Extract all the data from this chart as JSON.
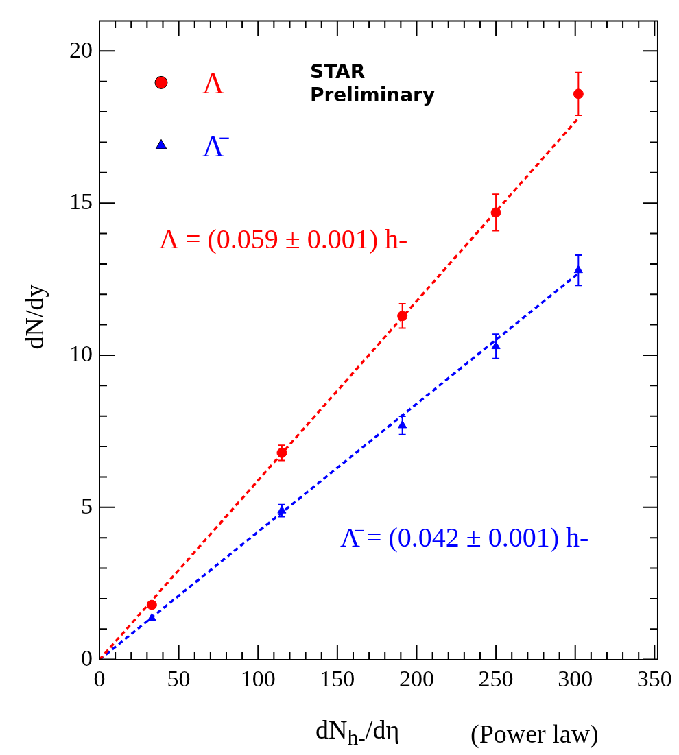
{
  "chart_data": {
    "type": "scatter",
    "xlabel": "dN$_{h-}$/dη",
    "ylabel": "dN/dy",
    "xlim": [
      0,
      352
    ],
    "ylim": [
      0,
      21
    ],
    "xticks": [
      0,
      {
        "value": 10,
        "label": null
      },
      {
        "value": 20,
        "label": null
      },
      {
        "value": 30,
        "label": null
      },
      {
        "value": 40,
        "label": null
      },
      50,
      {
        "value": 60,
        "label": null
      },
      {
        "value": 70,
        "label": null
      },
      {
        "value": 80,
        "label": null
      },
      {
        "value": 90,
        "label": null
      },
      100,
      {
        "value": 110,
        "label": null
      },
      {
        "value": 120,
        "label": null
      },
      {
        "value": 130,
        "label": null
      },
      {
        "value": 140,
        "label": null
      },
      150,
      {
        "value": 160,
        "label": null
      },
      {
        "value": 170,
        "label": null
      },
      {
        "value": 180,
        "label": null
      },
      {
        "value": 190,
        "label": null
      },
      200,
      {
        "value": 210,
        "label": null
      },
      {
        "value": 220,
        "label": null
      },
      {
        "value": 230,
        "label": null
      },
      {
        "value": 240,
        "label": null
      },
      250,
      {
        "value": 260,
        "label": null
      },
      {
        "value": 270,
        "label": null
      },
      {
        "value": 280,
        "label": null
      },
      {
        "value": 290,
        "label": null
      },
      300,
      {
        "value": 310,
        "label": null
      },
      {
        "value": 320,
        "label": null
      },
      {
        "value": 330,
        "label": null
      },
      {
        "value": 340,
        "label": null
      },
      350
    ],
    "yticks": [
      0,
      {
        "value": 1,
        "label": null
      },
      {
        "value": 2,
        "label": null
      },
      {
        "value": 3,
        "label": null
      },
      {
        "value": 4,
        "label": null
      },
      5,
      {
        "value": 6,
        "label": null
      },
      {
        "value": 7,
        "label": null
      },
      {
        "value": 8,
        "label": null
      },
      {
        "value": 9,
        "label": null
      },
      10,
      {
        "value": 11,
        "label": null
      },
      {
        "value": 12,
        "label": null
      },
      {
        "value": 13,
        "label": null
      },
      {
        "value": 14,
        "label": null
      },
      15,
      {
        "value": 16,
        "label": null
      },
      {
        "value": 17,
        "label": null
      },
      {
        "value": 18,
        "label": null
      },
      {
        "value": 19,
        "label": null
      },
      20
    ],
    "legend": "top left",
    "series": [
      {
        "name": "Λ",
        "type": "scatter",
        "marker": "circle",
        "color": "#ff0000",
        "x": [
          33,
          115,
          191,
          250,
          302
        ],
        "values": [
          1.8,
          6.8,
          11.3,
          14.7,
          18.6
        ],
        "errors": [
          null,
          0.25,
          0.4,
          0.6,
          0.7
        ]
      },
      {
        "name": "Λ̄",
        "type": "scatter",
        "marker": "triangle",
        "color": "#0000ff",
        "x": [
          33,
          115,
          191,
          250,
          302
        ],
        "values": [
          1.36,
          4.9,
          7.7,
          10.3,
          12.8
        ],
        "errors": [
          null,
          0.2,
          0.3,
          0.4,
          0.5
        ]
      },
      {
        "type": "line",
        "line_style": "dashed",
        "color": "#ff0000",
        "x": [
          0,
          302
        ],
        "values": [
          0,
          17.8
        ]
      },
      {
        "type": "line",
        "line_style": "dashed",
        "color": "#0000ff",
        "x": [
          0,
          302
        ],
        "values": [
          0,
          12.7
        ]
      }
    ],
    "annotations": [
      "STAR Preliminary",
      "Λ = (0.059 ± 0.001) h-",
      "Λ̄ = (0.042 ± 0.001) h-",
      "(Power law)"
    ]
  }
}
